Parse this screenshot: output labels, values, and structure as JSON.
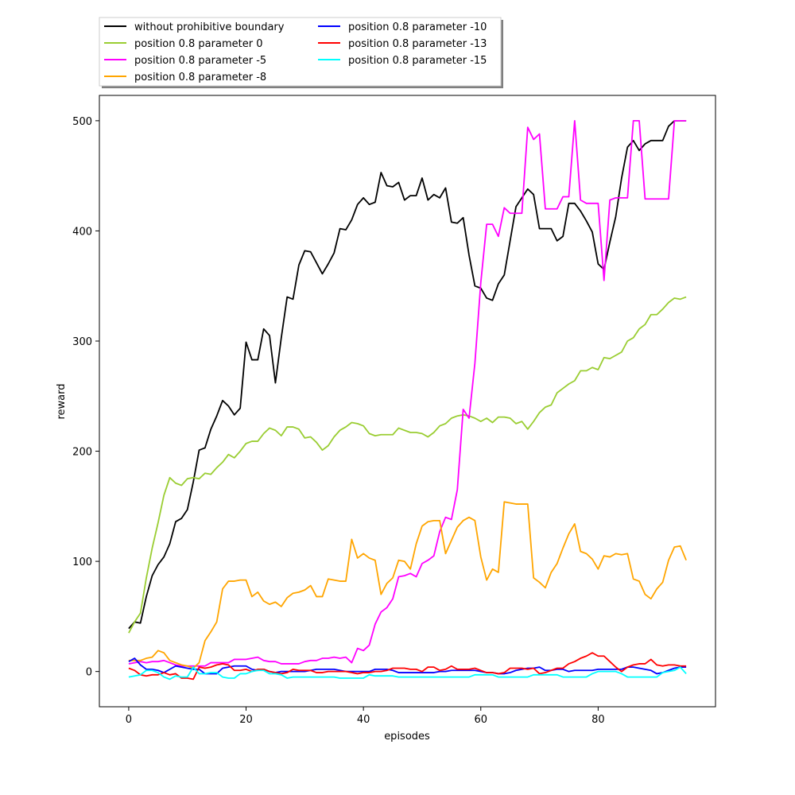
{
  "chart_data": {
    "type": "line",
    "title": "",
    "xlabel": "episodes",
    "ylabel": "reward",
    "xlim": [
      -5,
      100
    ],
    "ylim": [
      -32,
      523
    ],
    "xticks": [
      0,
      20,
      40,
      60,
      80
    ],
    "yticks": [
      0,
      100,
      200,
      300,
      400,
      500
    ],
    "grid": false,
    "legend_placement": "top-left, above axes, 2 columns",
    "x": [
      0,
      1,
      2,
      3,
      4,
      5,
      6,
      7,
      8,
      9,
      10,
      11,
      12,
      13,
      14,
      15,
      16,
      17,
      18,
      19,
      20,
      21,
      22,
      23,
      24,
      25,
      26,
      27,
      28,
      29,
      30,
      31,
      32,
      33,
      34,
      35,
      36,
      37,
      38,
      39,
      40,
      41,
      42,
      43,
      44,
      45,
      46,
      47,
      48,
      49,
      50,
      51,
      52,
      53,
      54,
      55,
      56,
      57,
      58,
      59,
      60,
      61,
      62,
      63,
      64,
      65,
      66,
      67,
      68,
      69,
      70,
      71,
      72,
      73,
      74,
      75,
      76,
      77,
      78,
      79,
      80,
      81,
      82,
      83,
      84,
      85,
      86,
      87,
      88,
      89,
      90,
      91,
      92,
      93,
      94,
      95
    ],
    "series": [
      {
        "name": "without prohibitive boundary",
        "color": "#000000",
        "values": [
          39,
          45,
          44,
          68,
          87,
          97,
          104,
          116,
          136,
          139,
          147,
          172,
          201,
          203,
          220,
          232,
          246,
          241,
          233,
          239,
          299,
          283,
          283,
          311,
          305,
          262,
          303,
          340,
          338,
          369,
          382,
          381,
          371,
          361,
          370,
          380,
          402,
          401,
          410,
          424,
          430,
          424,
          426,
          453,
          441,
          440,
          444,
          428,
          432,
          432,
          448,
          428,
          433,
          430,
          439,
          408,
          407,
          412,
          378,
          350,
          348,
          339,
          337,
          352,
          360,
          391,
          422,
          430,
          438,
          433,
          402,
          402,
          402,
          391,
          395,
          425,
          425,
          418,
          409,
          399,
          370,
          365,
          390,
          413,
          448,
          476,
          482,
          473,
          479,
          482,
          482,
          482,
          495,
          500,
          500,
          500
        ]
      },
      {
        "name": "position 0.8 parameter 0",
        "color": "#9acd32",
        "values": [
          35,
          45,
          53,
          85,
          112,
          135,
          160,
          176,
          171,
          169,
          175,
          176,
          175,
          180,
          179,
          185,
          190,
          197,
          194,
          200,
          207,
          209,
          209,
          216,
          221,
          219,
          214,
          222,
          222,
          220,
          212,
          213,
          208,
          201,
          205,
          213,
          219,
          222,
          226,
          225,
          223,
          216,
          214,
          215,
          215,
          215,
          221,
          219,
          217,
          217,
          216,
          213,
          217,
          223,
          225,
          230,
          232,
          233,
          232,
          230,
          227,
          230,
          226,
          231,
          231,
          230,
          225,
          227,
          220,
          227,
          235,
          240,
          242,
          253,
          257,
          261,
          264,
          273,
          273,
          276,
          274,
          285,
          284,
          287,
          290,
          300,
          303,
          311,
          315,
          324,
          324,
          329,
          335,
          339,
          338,
          340
        ]
      },
      {
        "name": "position 0.8 parameter -5",
        "color": "#ff00ff",
        "values": [
          7,
          8,
          9,
          8,
          9,
          9,
          10,
          8,
          6,
          5,
          5,
          5,
          5,
          5,
          8,
          8,
          8,
          8,
          11,
          11,
          11,
          12,
          13,
          10,
          9,
          9,
          7,
          7,
          7,
          7,
          9,
          10,
          10,
          12,
          12,
          13,
          12,
          13,
          8,
          21,
          19,
          24,
          43,
          54,
          58,
          66,
          86,
          87,
          89,
          86,
          98,
          101,
          105,
          127,
          140,
          138,
          165,
          238,
          230,
          280,
          353,
          406,
          406,
          395,
          421,
          416,
          416,
          416,
          494,
          483,
          488,
          420,
          420,
          420,
          431,
          431,
          500,
          428,
          425,
          425,
          425,
          355,
          428,
          430,
          430,
          430,
          500,
          500,
          429,
          429,
          429,
          429,
          429,
          500,
          500,
          500
        ]
      },
      {
        "name": "position 0.8 parameter -8",
        "color": "#ffa500",
        "values": [
          10,
          10,
          10,
          12,
          13,
          19,
          17,
          10,
          8,
          6,
          5,
          3,
          8,
          28,
          36,
          45,
          75,
          82,
          82,
          83,
          83,
          68,
          72,
          64,
          61,
          63,
          59,
          67,
          71,
          72,
          74,
          78,
          68,
          68,
          84,
          83,
          82,
          82,
          120,
          103,
          107,
          103,
          101,
          70,
          80,
          85,
          101,
          100,
          93,
          116,
          132,
          136,
          137,
          137,
          107,
          119,
          131,
          137,
          140,
          137,
          104,
          83,
          93,
          90,
          154,
          153,
          152,
          152,
          152,
          85,
          81,
          76,
          90,
          98,
          112,
          125,
          134,
          109,
          107,
          102,
          93,
          105,
          104,
          107,
          106,
          107,
          84,
          82,
          70,
          66,
          75,
          81,
          101,
          113,
          114,
          101
        ]
      },
      {
        "name": "position 0.8 parameter -10",
        "color": "#0000ff",
        "values": [
          9,
          12,
          6,
          2,
          2,
          1,
          -1,
          2,
          5,
          4,
          3,
          2,
          2,
          -2,
          -2,
          -2,
          3,
          4,
          5,
          5,
          5,
          2,
          1,
          2,
          0,
          -1,
          0,
          0,
          0,
          0,
          0,
          1,
          2,
          2,
          2,
          2,
          1,
          0,
          0,
          0,
          0,
          0,
          2,
          2,
          2,
          1,
          -1,
          -1,
          -1,
          -1,
          -1,
          -1,
          -1,
          0,
          0,
          1,
          1,
          1,
          1,
          1,
          0,
          -1,
          -1,
          -2,
          -2,
          -1,
          1,
          2,
          3,
          3,
          4,
          1,
          1,
          2,
          2,
          0,
          1,
          1,
          1,
          1,
          2,
          2,
          2,
          2,
          2,
          4,
          4,
          3,
          2,
          1,
          -2,
          -1,
          1,
          3,
          4,
          4
        ]
      },
      {
        "name": "position 0.8 parameter -13",
        "color": "#ff0000",
        "values": [
          3,
          1,
          -3,
          -4,
          -3,
          -3,
          -1,
          -3,
          -2,
          -6,
          -6,
          -7,
          4,
          3,
          4,
          6,
          7,
          6,
          1,
          1,
          2,
          0,
          2,
          2,
          0,
          -1,
          -2,
          -1,
          2,
          1,
          1,
          1,
          -1,
          -1,
          0,
          0,
          0,
          0,
          -1,
          -2,
          -1,
          -1,
          0,
          0,
          1,
          3,
          3,
          3,
          2,
          2,
          0,
          4,
          4,
          1,
          2,
          5,
          2,
          2,
          2,
          3,
          1,
          -1,
          -1,
          -2,
          -1,
          3,
          3,
          3,
          2,
          3,
          -2,
          -1,
          1,
          3,
          3,
          7,
          9,
          12,
          14,
          17,
          14,
          14,
          9,
          4,
          0,
          4,
          6,
          7,
          7,
          11,
          6,
          5,
          6,
          6,
          5,
          5
        ]
      },
      {
        "name": "position 0.8 parameter -15",
        "color": "#00ffff",
        "values": [
          -5,
          -4,
          -3,
          1,
          1,
          -1,
          -5,
          -7,
          -4,
          -5,
          -5,
          4,
          -2,
          -2,
          -1,
          -1,
          -5,
          -6,
          -6,
          -2,
          -2,
          0,
          1,
          1,
          -2,
          -2,
          -3,
          -6,
          -5,
          -5,
          -5,
          -5,
          -5,
          -5,
          -5,
          -5,
          -6,
          -6,
          -6,
          -6,
          -6,
          -3,
          -4,
          -4,
          -4,
          -4,
          -5,
          -5,
          -5,
          -5,
          -5,
          -5,
          -5,
          -5,
          -5,
          -5,
          -5,
          -5,
          -5,
          -3,
          -3,
          -3,
          -3,
          -5,
          -5,
          -5,
          -5,
          -5,
          -5,
          -3,
          -3,
          -3,
          -3,
          -3,
          -5,
          -5,
          -5,
          -5,
          -5,
          -2,
          0,
          0,
          0,
          0,
          -2,
          -5,
          -5,
          -5,
          -5,
          -5,
          -5,
          -1,
          0,
          1,
          4,
          -2
        ]
      }
    ]
  }
}
